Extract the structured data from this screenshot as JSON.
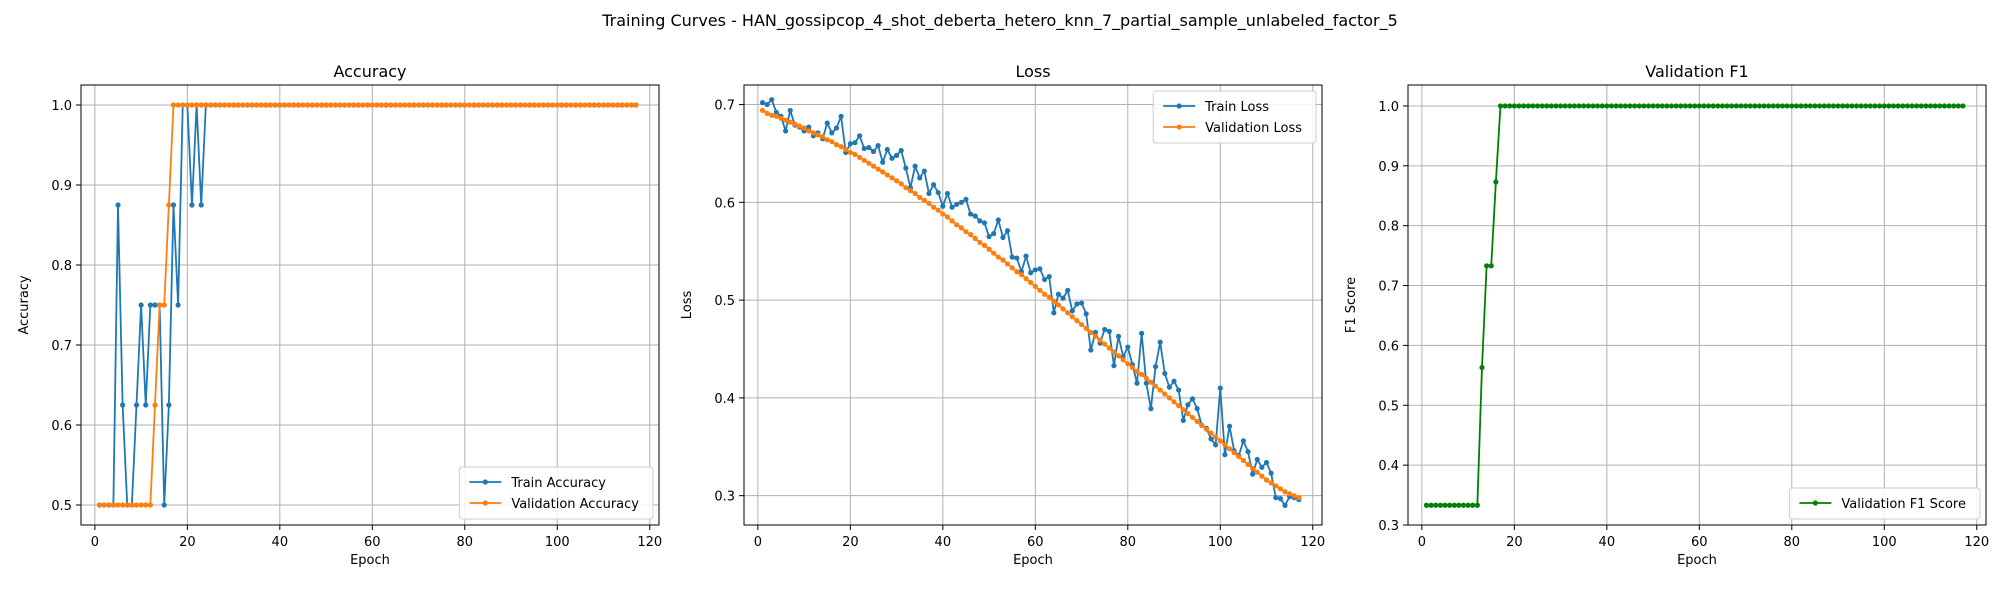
{
  "figure": {
    "suptitle": "Training Curves - HAN_gossipcop_4_shot_deberta_hetero_knn_7_partial_sample_unlabeled_factor_5"
  },
  "colors": {
    "blue": "#1f77b4",
    "orange": "#ff7f0e",
    "green": "#008000",
    "grid": "#b0b0b0"
  },
  "chart_data": [
    {
      "type": "line",
      "title": "Accuracy",
      "xlabel": "Epoch",
      "ylabel": "Accuracy",
      "xlim": [
        -3,
        122
      ],
      "ylim": [
        0.475,
        1.025
      ],
      "xticks": [
        0,
        20,
        40,
        60,
        80,
        100,
        120
      ],
      "yticks": [
        0.5,
        0.6,
        0.7,
        0.8,
        0.9,
        1.0
      ],
      "grid": true,
      "legend_position": "lower-right",
      "series": [
        {
          "name": "Train Accuracy",
          "color": "#1f77b4",
          "x_start": 1,
          "values": [
            0.5,
            0.5,
            0.5,
            0.5,
            0.875,
            0.625,
            0.5,
            0.5,
            0.625,
            0.75,
            0.625,
            0.75,
            0.75,
            0.75,
            0.5,
            0.625,
            0.875,
            0.75,
            1.0,
            1.0,
            0.875,
            1.0,
            0.875,
            1.0,
            1.0,
            1.0,
            1.0,
            1.0,
            1.0,
            1.0,
            1.0,
            1.0,
            1.0,
            1.0,
            1.0,
            1.0,
            1.0,
            1.0,
            1.0,
            1.0,
            1.0,
            1.0,
            1.0,
            1.0,
            1.0,
            1.0,
            1.0,
            1.0,
            1.0,
            1.0,
            1.0,
            1.0,
            1.0,
            1.0,
            1.0,
            1.0,
            1.0,
            1.0,
            1.0,
            1.0,
            1.0,
            1.0,
            1.0,
            1.0,
            1.0,
            1.0,
            1.0,
            1.0,
            1.0,
            1.0,
            1.0,
            1.0,
            1.0,
            1.0,
            1.0,
            1.0,
            1.0,
            1.0,
            1.0,
            1.0,
            1.0,
            1.0,
            1.0,
            1.0,
            1.0,
            1.0,
            1.0,
            1.0,
            1.0,
            1.0,
            1.0,
            1.0,
            1.0,
            1.0,
            1.0,
            1.0,
            1.0,
            1.0,
            1.0,
            1.0,
            1.0,
            1.0,
            1.0,
            1.0,
            1.0,
            1.0,
            1.0,
            1.0,
            1.0,
            1.0,
            1.0,
            1.0,
            1.0,
            1.0,
            1.0,
            1.0,
            1.0
          ]
        },
        {
          "name": "Validation Accuracy",
          "color": "#ff7f0e",
          "x_start": 1,
          "values": [
            0.5,
            0.5,
            0.5,
            0.5,
            0.5,
            0.5,
            0.5,
            0.5,
            0.5,
            0.5,
            0.5,
            0.5,
            0.625,
            0.75,
            0.75,
            0.875,
            1.0,
            1.0,
            1.0,
            1.0,
            1.0,
            1.0,
            1.0,
            1.0,
            1.0,
            1.0,
            1.0,
            1.0,
            1.0,
            1.0,
            1.0,
            1.0,
            1.0,
            1.0,
            1.0,
            1.0,
            1.0,
            1.0,
            1.0,
            1.0,
            1.0,
            1.0,
            1.0,
            1.0,
            1.0,
            1.0,
            1.0,
            1.0,
            1.0,
            1.0,
            1.0,
            1.0,
            1.0,
            1.0,
            1.0,
            1.0,
            1.0,
            1.0,
            1.0,
            1.0,
            1.0,
            1.0,
            1.0,
            1.0,
            1.0,
            1.0,
            1.0,
            1.0,
            1.0,
            1.0,
            1.0,
            1.0,
            1.0,
            1.0,
            1.0,
            1.0,
            1.0,
            1.0,
            1.0,
            1.0,
            1.0,
            1.0,
            1.0,
            1.0,
            1.0,
            1.0,
            1.0,
            1.0,
            1.0,
            1.0,
            1.0,
            1.0,
            1.0,
            1.0,
            1.0,
            1.0,
            1.0,
            1.0,
            1.0,
            1.0,
            1.0,
            1.0,
            1.0,
            1.0,
            1.0,
            1.0,
            1.0,
            1.0,
            1.0,
            1.0,
            1.0,
            1.0,
            1.0,
            1.0,
            1.0,
            1.0,
            1.0
          ]
        }
      ]
    },
    {
      "type": "line",
      "title": "Loss",
      "xlabel": "Epoch",
      "ylabel": "Loss",
      "xlim": [
        -3,
        122
      ],
      "ylim": [
        0.27,
        0.72
      ],
      "xticks": [
        0,
        20,
        40,
        60,
        80,
        100,
        120
      ],
      "yticks": [
        0.3,
        0.4,
        0.5,
        0.6,
        0.7
      ],
      "grid": true,
      "legend_position": "top-right",
      "series": [
        {
          "name": "Train Loss",
          "color": "#1f77b4",
          "x_start": 1,
          "values": [
            0.702,
            0.7,
            0.705,
            0.692,
            0.688,
            0.673,
            0.694,
            0.679,
            0.677,
            0.673,
            0.677,
            0.668,
            0.671,
            0.665,
            0.681,
            0.671,
            0.676,
            0.688,
            0.651,
            0.66,
            0.661,
            0.668,
            0.655,
            0.656,
            0.652,
            0.658,
            0.641,
            0.654,
            0.645,
            0.648,
            0.653,
            0.635,
            0.615,
            0.637,
            0.625,
            0.632,
            0.609,
            0.618,
            0.61,
            0.596,
            0.609,
            0.595,
            0.598,
            0.6,
            0.603,
            0.588,
            0.586,
            0.581,
            0.579,
            0.565,
            0.568,
            0.582,
            0.564,
            0.571,
            0.544,
            0.543,
            0.529,
            0.545,
            0.528,
            0.531,
            0.532,
            0.521,
            0.524,
            0.487,
            0.506,
            0.502,
            0.51,
            0.489,
            0.496,
            0.497,
            0.486,
            0.449,
            0.467,
            0.456,
            0.47,
            0.468,
            0.433,
            0.463,
            0.442,
            0.452,
            0.434,
            0.415,
            0.466,
            0.415,
            0.389,
            0.432,
            0.457,
            0.425,
            0.411,
            0.417,
            0.408,
            0.377,
            0.393,
            0.399,
            0.389,
            0.372,
            0.369,
            0.358,
            0.352,
            0.41,
            0.342,
            0.371,
            0.346,
            0.341,
            0.356,
            0.345,
            0.322,
            0.337,
            0.329,
            0.334,
            0.323,
            0.298,
            0.297,
            0.29,
            0.299,
            0.298,
            0.296
          ]
        },
        {
          "name": "Validation Loss",
          "color": "#ff7f0e",
          "x_start": 1,
          "values": [
            0.694,
            0.691,
            0.689,
            0.688,
            0.686,
            0.684,
            0.682,
            0.68,
            0.678,
            0.676,
            0.673,
            0.671,
            0.669,
            0.667,
            0.664,
            0.662,
            0.659,
            0.657,
            0.654,
            0.651,
            0.649,
            0.646,
            0.643,
            0.64,
            0.637,
            0.634,
            0.631,
            0.628,
            0.625,
            0.622,
            0.619,
            0.615,
            0.612,
            0.609,
            0.605,
            0.602,
            0.599,
            0.595,
            0.592,
            0.588,
            0.585,
            0.581,
            0.577,
            0.574,
            0.57,
            0.567,
            0.563,
            0.559,
            0.556,
            0.552,
            0.548,
            0.544,
            0.541,
            0.537,
            0.533,
            0.529,
            0.526,
            0.522,
            0.518,
            0.514,
            0.51,
            0.506,
            0.503,
            0.499,
            0.495,
            0.491,
            0.487,
            0.483,
            0.479,
            0.475,
            0.471,
            0.467,
            0.463,
            0.459,
            0.455,
            0.451,
            0.447,
            0.443,
            0.439,
            0.435,
            0.431,
            0.427,
            0.424,
            0.42,
            0.416,
            0.412,
            0.408,
            0.404,
            0.4,
            0.396,
            0.392,
            0.388,
            0.384,
            0.38,
            0.376,
            0.372,
            0.368,
            0.364,
            0.36,
            0.356,
            0.352,
            0.348,
            0.344,
            0.34,
            0.336,
            0.332,
            0.328,
            0.324,
            0.32,
            0.316,
            0.313,
            0.31,
            0.307,
            0.304,
            0.302,
            0.3,
            0.298
          ]
        }
      ]
    },
    {
      "type": "line",
      "title": "Validation F1",
      "xlabel": "Epoch",
      "ylabel": "F1 Score",
      "xlim": [
        -3,
        122
      ],
      "ylim": [
        0.3,
        1.035
      ],
      "xticks": [
        0,
        20,
        40,
        60,
        80,
        100,
        120
      ],
      "yticks": [
        0.3,
        0.4,
        0.5,
        0.6,
        0.7,
        0.8,
        0.9,
        1.0
      ],
      "grid": true,
      "legend_position": "lower-right",
      "series": [
        {
          "name": "Validation F1 Score",
          "color": "#008000",
          "x_start": 1,
          "values": [
            0.333,
            0.333,
            0.333,
            0.333,
            0.333,
            0.333,
            0.333,
            0.333,
            0.333,
            0.333,
            0.333,
            0.333,
            0.563,
            0.733,
            0.733,
            0.873,
            1.0,
            1.0,
            1.0,
            1.0,
            1.0,
            1.0,
            1.0,
            1.0,
            1.0,
            1.0,
            1.0,
            1.0,
            1.0,
            1.0,
            1.0,
            1.0,
            1.0,
            1.0,
            1.0,
            1.0,
            1.0,
            1.0,
            1.0,
            1.0,
            1.0,
            1.0,
            1.0,
            1.0,
            1.0,
            1.0,
            1.0,
            1.0,
            1.0,
            1.0,
            1.0,
            1.0,
            1.0,
            1.0,
            1.0,
            1.0,
            1.0,
            1.0,
            1.0,
            1.0,
            1.0,
            1.0,
            1.0,
            1.0,
            1.0,
            1.0,
            1.0,
            1.0,
            1.0,
            1.0,
            1.0,
            1.0,
            1.0,
            1.0,
            1.0,
            1.0,
            1.0,
            1.0,
            1.0,
            1.0,
            1.0,
            1.0,
            1.0,
            1.0,
            1.0,
            1.0,
            1.0,
            1.0,
            1.0,
            1.0,
            1.0,
            1.0,
            1.0,
            1.0,
            1.0,
            1.0,
            1.0,
            1.0,
            1.0,
            1.0,
            1.0,
            1.0,
            1.0,
            1.0,
            1.0,
            1.0,
            1.0,
            1.0,
            1.0,
            1.0,
            1.0,
            1.0,
            1.0,
            1.0,
            1.0,
            1.0,
            1.0
          ]
        }
      ]
    }
  ]
}
